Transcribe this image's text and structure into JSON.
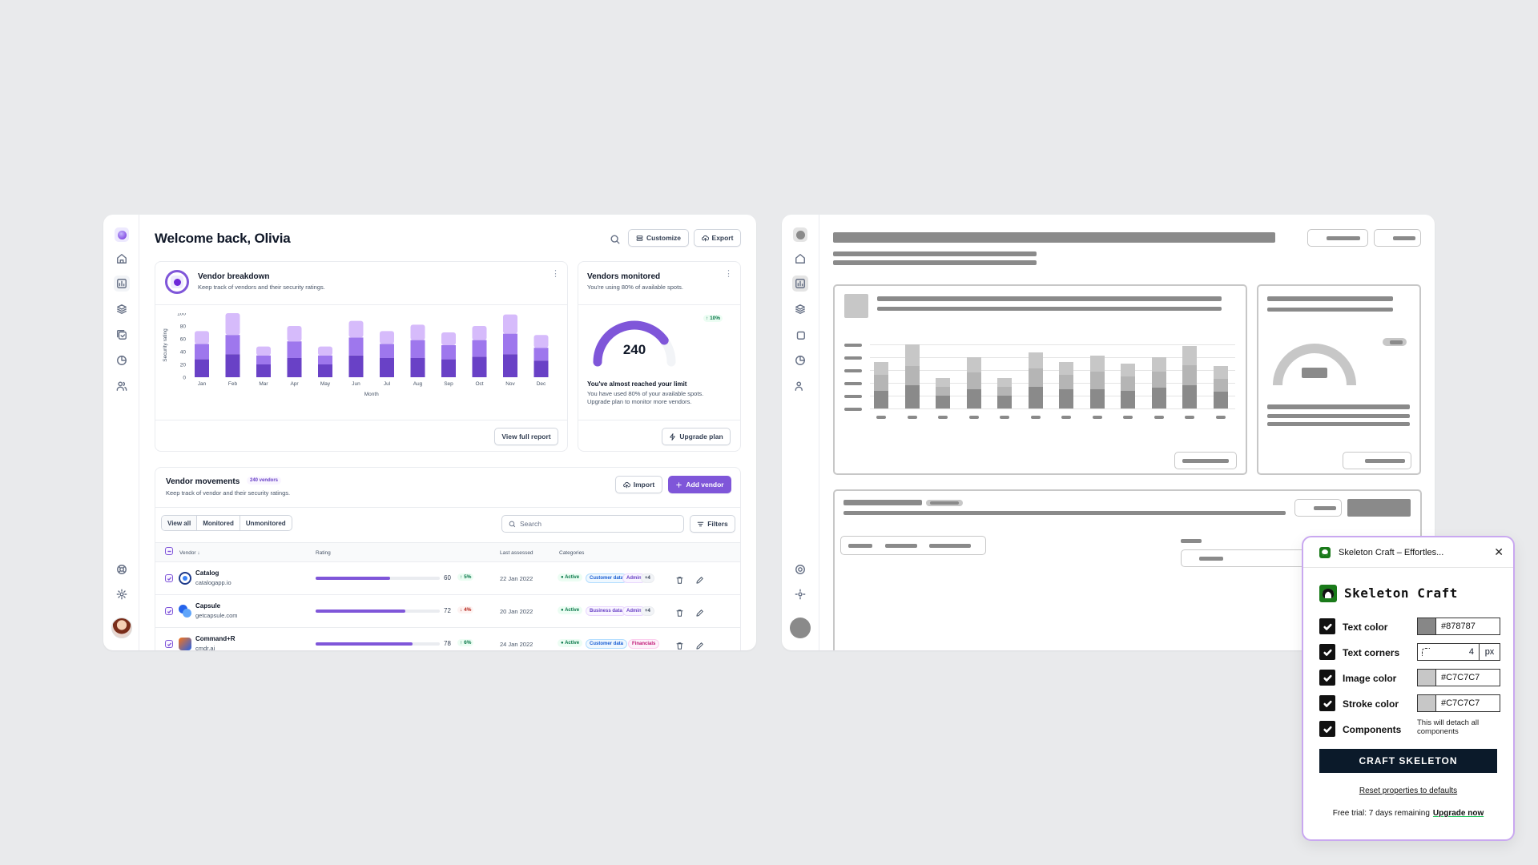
{
  "dashboard": {
    "title": "Welcome back, Olivia",
    "customize_label": "Customize",
    "export_label": "Export",
    "vendor_breakdown": {
      "title": "Vendor breakdown",
      "subtitle": "Keep track of vendors and their security ratings.",
      "view_report_label": "View full report"
    },
    "vendors_monitored": {
      "title": "Vendors monitored",
      "subtitle": "You're using 80% of available spots.",
      "gauge_value": "240",
      "gauge_fill_fraction": 0.8,
      "change_badge": "10%",
      "limit_title": "You've almost reached your limit",
      "limit_text_1": "You have used 80% of your available spots.",
      "limit_text_2": "Upgrade plan to monitor more vendors.",
      "upgrade_label": "Upgrade plan"
    },
    "vendor_movements": {
      "title": "Vendor movements",
      "count_badge": "240 vendors",
      "subtitle": "Keep track of vendor and their security ratings.",
      "import_label": "Import",
      "add_label": "Add vendor",
      "tabs": [
        "View all",
        "Monitored",
        "Unmonitored"
      ],
      "search_placeholder": "Search",
      "filters_label": "Filters",
      "columns": {
        "vendor": "Vendor",
        "rating": "Rating",
        "last_assessed": "Last assessed",
        "categories": "Categories"
      },
      "rows": [
        {
          "name": "Catalog",
          "domain": "catalogapp.io",
          "rating": 60,
          "rating_label": "60",
          "trend": "5%",
          "trend_dir": "up",
          "date": "22 Jan 2022",
          "status": "Active",
          "cat1": "Customer data",
          "cat2": "Admin",
          "more": "+4"
        },
        {
          "name": "Capsule",
          "domain": "getcapsule.com",
          "rating": 72,
          "rating_label": "72",
          "trend": "4%",
          "trend_dir": "down",
          "date": "20 Jan 2022",
          "status": "Active",
          "cat1": "Business data",
          "cat2": "Admin",
          "more": "+4"
        },
        {
          "name": "Command+R",
          "domain": "cmdr.ai",
          "rating": 78,
          "rating_label": "78",
          "trend": "6%",
          "trend_dir": "up",
          "date": "24 Jan 2022",
          "status": "Active",
          "cat1": "Customer data",
          "cat2": "Financials",
          "more": ""
        }
      ]
    }
  },
  "chart_data": {
    "type": "bar",
    "stacked": true,
    "categories": [
      "Jan",
      "Feb",
      "Mar",
      "Apr",
      "May",
      "Jun",
      "Jul",
      "Aug",
      "Sep",
      "Oct",
      "Nov",
      "Dec"
    ],
    "series": [
      {
        "values": [
          28,
          36,
          20,
          30,
          20,
          34,
          30,
          30,
          28,
          32,
          36,
          26
        ]
      },
      {
        "values": [
          24,
          30,
          14,
          26,
          14,
          28,
          22,
          28,
          22,
          26,
          32,
          20
        ]
      },
      {
        "values": [
          20,
          34,
          14,
          24,
          14,
          26,
          20,
          24,
          20,
          22,
          30,
          20
        ]
      }
    ],
    "series_colors": [
      "#6941c6",
      "#9e77ed",
      "#d6bbfb"
    ],
    "xlabel": "Month",
    "ylabel": "Security rating",
    "yticks": [
      "100",
      "80",
      "60",
      "40",
      "20",
      "0"
    ],
    "ylim": [
      0,
      100
    ],
    "grid": false,
    "legend": "none"
  },
  "plugin": {
    "window_title": "Skeleton Craft – Effortles...",
    "brand": "Skeleton Craft",
    "options": [
      {
        "label": "Text color",
        "value": "#878787",
        "swatch": "#878787"
      },
      {
        "label": "Text corners",
        "value": "4",
        "unit": "px"
      },
      {
        "label": "Image color",
        "value": "#C7C7C7",
        "swatch": "#C7C7C7"
      },
      {
        "label": "Stroke color",
        "value": "#C7C7C7",
        "swatch": "#C7C7C7"
      },
      {
        "label": "Components",
        "note": "This will detach all components"
      }
    ],
    "craft_label": "CRAFT SKELETON",
    "reset_label": "Reset properties to defaults",
    "trial_text": "Free trial: 7 days remaining",
    "upgrade_label": "Upgrade now"
  },
  "colors": {
    "accent": "#7f56d9",
    "skeleton_text": "#878787",
    "skeleton_image": "#C7C7C7",
    "background": "#e9eaec"
  }
}
